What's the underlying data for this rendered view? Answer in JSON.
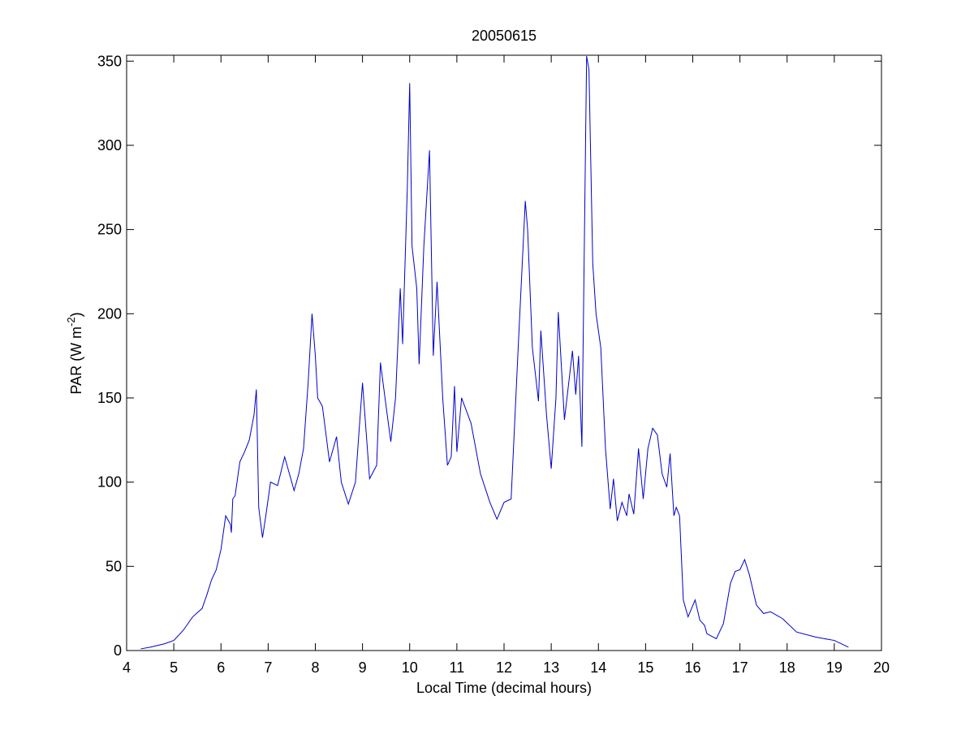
{
  "chart_data": {
    "type": "line",
    "title": "20050615",
    "xlabel": "Local Time (decimal hours)",
    "ylabel": [
      "PAR (W m",
      "-2",
      ")"
    ],
    "xlim": [
      4,
      20
    ],
    "xticks": [
      4,
      5,
      6,
      7,
      8,
      9,
      10,
      11,
      12,
      13,
      14,
      15,
      16,
      17,
      18,
      19,
      20
    ],
    "ylim": [
      0,
      353.5
    ],
    "yticks": [
      0,
      50,
      100,
      150,
      200,
      250,
      300,
      350
    ],
    "color": "#0000cc",
    "x": [
      4.3,
      4.5,
      4.8,
      5.0,
      5.2,
      5.4,
      5.6,
      5.7,
      5.8,
      5.9,
      6.0,
      6.1,
      6.2,
      6.22,
      6.25,
      6.3,
      6.4,
      6.5,
      6.6,
      6.7,
      6.75,
      6.8,
      6.88,
      6.95,
      7.05,
      7.2,
      7.35,
      7.45,
      7.55,
      7.65,
      7.75,
      7.85,
      7.93,
      8.0,
      8.05,
      8.15,
      8.3,
      8.45,
      8.55,
      8.7,
      8.85,
      9.0,
      9.05,
      9.15,
      9.3,
      9.38,
      9.5,
      9.6,
      9.7,
      9.8,
      9.85,
      9.95,
      10.0,
      10.05,
      10.15,
      10.2,
      10.3,
      10.42,
      10.5,
      10.58,
      10.7,
      10.8,
      10.88,
      10.95,
      11.0,
      11.1,
      11.3,
      11.5,
      11.7,
      11.85,
      12.0,
      12.15,
      12.3,
      12.45,
      12.5,
      12.6,
      12.73,
      12.78,
      12.9,
      13.0,
      13.1,
      13.15,
      13.28,
      13.45,
      13.52,
      13.58,
      13.65,
      13.75,
      13.8,
      13.88,
      13.95,
      14.0,
      14.05,
      14.15,
      14.25,
      14.32,
      14.4,
      14.5,
      14.6,
      14.65,
      14.75,
      14.85,
      14.95,
      15.05,
      15.15,
      15.25,
      15.35,
      15.45,
      15.52,
      15.6,
      15.65,
      15.72,
      15.8,
      15.9,
      16.05,
      16.15,
      16.25,
      16.3,
      16.5,
      16.65,
      16.8,
      16.9,
      17.0,
      17.1,
      17.2,
      17.35,
      17.5,
      17.65,
      17.9,
      18.2,
      18.6,
      19.0,
      19.3
    ],
    "values": [
      1,
      2,
      4,
      6,
      12,
      20,
      25,
      33,
      42,
      48,
      60,
      80,
      75,
      70,
      90,
      92,
      112,
      118,
      125,
      140,
      155,
      85,
      67,
      80,
      100,
      98,
      115,
      105,
      95,
      105,
      120,
      160,
      200,
      175,
      150,
      145,
      112,
      127,
      100,
      87,
      100,
      159,
      140,
      102,
      110,
      171,
      145,
      124,
      150,
      215,
      182,
      275,
      337,
      240,
      215,
      170,
      240,
      297,
      175,
      219,
      150,
      110,
      115,
      157,
      118,
      150,
      135,
      105,
      88,
      78,
      88,
      90,
      180,
      267,
      250,
      180,
      148,
      190,
      140,
      108,
      150,
      201,
      137,
      178,
      152,
      175,
      121,
      353,
      345,
      230,
      200,
      190,
      180,
      120,
      84,
      102,
      77,
      88,
      80,
      93,
      81,
      120,
      90,
      120,
      132,
      128,
      105,
      97,
      117,
      80,
      85,
      80,
      30,
      20,
      30,
      18,
      15,
      10,
      7,
      16,
      40,
      47,
      48,
      54,
      45,
      27,
      22,
      23,
      19,
      11,
      8,
      6,
      2
    ]
  }
}
